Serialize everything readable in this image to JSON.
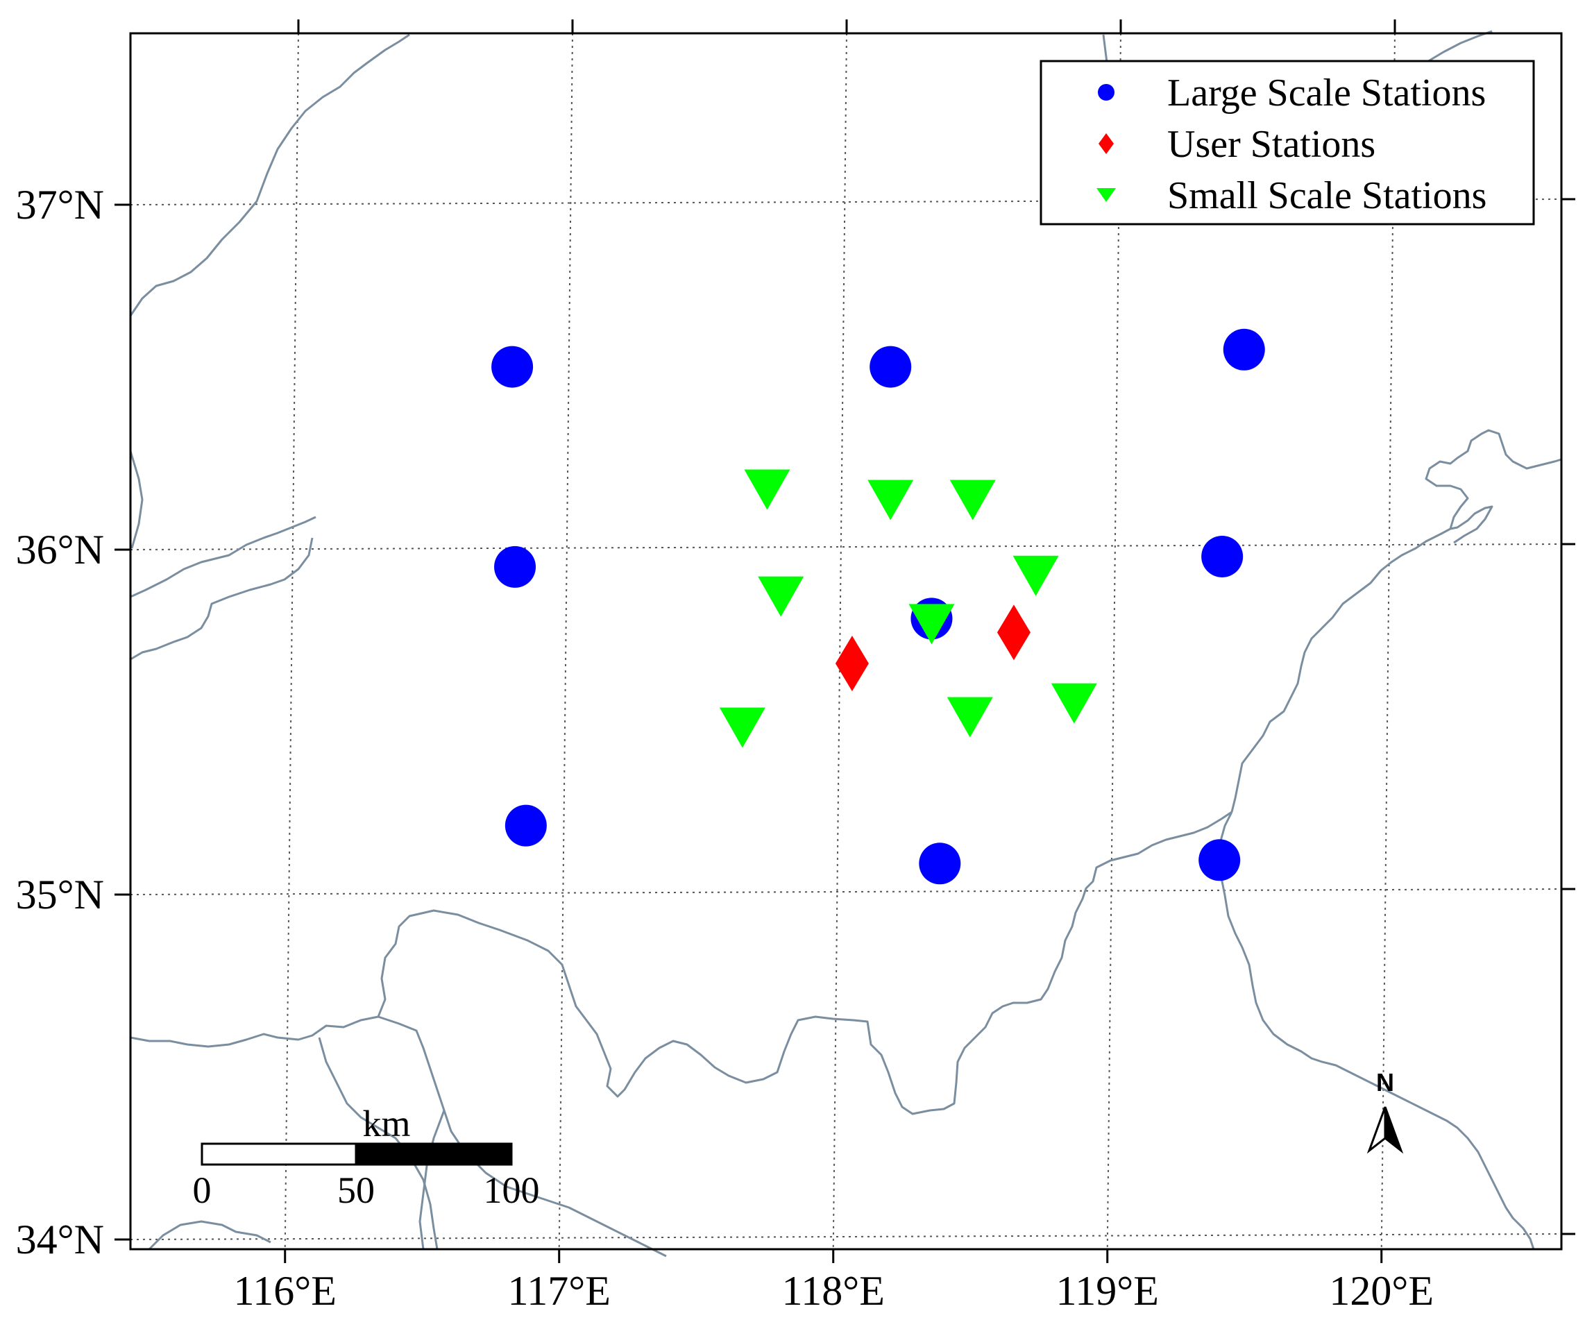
{
  "chart_data": {
    "type": "scatter",
    "map": {
      "lon_range": [
        115.5,
        120.5
      ],
      "lat_range": [
        34.0,
        37.5
      ],
      "grid": true,
      "x_ticks": [
        {
          "value": 116,
          "label": "116°E"
        },
        {
          "value": 117,
          "label": "117°E"
        },
        {
          "value": 118,
          "label": "118°E"
        },
        {
          "value": 119,
          "label": "119°E"
        },
        {
          "value": 120,
          "label": "120°E"
        }
      ],
      "y_ticks": [
        {
          "value": 34,
          "label": "34°N"
        },
        {
          "value": 35,
          "label": "35°N"
        },
        {
          "value": 36,
          "label": "36°N"
        },
        {
          "value": 37,
          "label": "37°N"
        }
      ]
    },
    "legend": {
      "position": "top-right",
      "entries": [
        {
          "label": "Large Scale Stations",
          "marker": "circle",
          "color": "#0000ff"
        },
        {
          "label": "User Stations",
          "marker": "diamond",
          "color": "#ff0000"
        },
        {
          "label": "Small Scale Stations",
          "marker": "triangle-down",
          "color": "#00ff00"
        }
      ]
    },
    "series": [
      {
        "name": "Large Scale Stations",
        "marker": "circle",
        "color": "#0000ff",
        "points": [
          {
            "lon": 116.78,
            "lat": 36.53
          },
          {
            "lon": 116.79,
            "lat": 35.95
          },
          {
            "lon": 116.83,
            "lat": 35.2
          },
          {
            "lon": 118.16,
            "lat": 36.53
          },
          {
            "lon": 118.31,
            "lat": 35.8
          },
          {
            "lon": 118.34,
            "lat": 35.09
          },
          {
            "lon": 119.45,
            "lat": 36.58
          },
          {
            "lon": 119.37,
            "lat": 35.98
          },
          {
            "lon": 119.36,
            "lat": 35.1
          }
        ]
      },
      {
        "name": "User Stations",
        "marker": "diamond",
        "color": "#ff0000",
        "points": [
          {
            "lon": 118.02,
            "lat": 35.67
          },
          {
            "lon": 118.61,
            "lat": 35.76
          }
        ]
      },
      {
        "name": "Small Scale Stations",
        "marker": "triangle-down",
        "color": "#00ff00",
        "points": [
          {
            "lon": 117.71,
            "lat": 36.18
          },
          {
            "lon": 118.16,
            "lat": 36.15
          },
          {
            "lon": 118.46,
            "lat": 36.15
          },
          {
            "lon": 117.76,
            "lat": 35.87
          },
          {
            "lon": 118.31,
            "lat": 35.79
          },
          {
            "lon": 118.69,
            "lat": 35.93
          },
          {
            "lon": 117.62,
            "lat": 35.49
          },
          {
            "lon": 118.45,
            "lat": 35.52
          },
          {
            "lon": 118.83,
            "lat": 35.56
          }
        ]
      }
    ],
    "scale_bar": {
      "unit": "km",
      "labels": [
        "0",
        "50",
        "100"
      ]
    },
    "north_arrow": {
      "label": "N"
    }
  }
}
